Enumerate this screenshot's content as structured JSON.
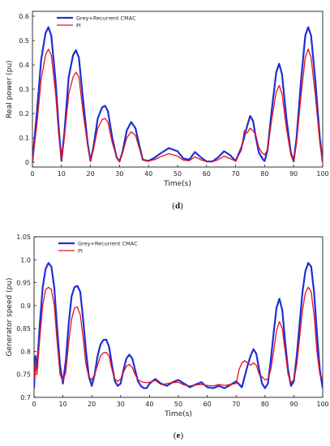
{
  "chart_data": [
    {
      "type": "line",
      "panel_label_open": "(",
      "panel_label_letter": "d",
      "panel_label_close": ")",
      "xlabel": "Time(s)",
      "ylabel": "Real power (pu)",
      "xlim": [
        0,
        100
      ],
      "ylim": [
        -0.02,
        0.62
      ],
      "xticks": [
        0,
        10,
        20,
        30,
        40,
        50,
        60,
        70,
        80,
        90,
        100
      ],
      "yticks": [
        0,
        0.1,
        0.2,
        0.3,
        0.4,
        0.5,
        0.6
      ],
      "ytick_labels": [
        "0",
        "0.1",
        "0.2",
        "0.3",
        "0.4",
        "0.5",
        "0.6"
      ],
      "legend_position": "top-left",
      "series": [
        {
          "name": "Grey+Recurrent CMAC",
          "color": "#1f2fd6",
          "x": [
            0,
            1.5,
            3,
            4.5,
            5.5,
            6.5,
            8,
            9,
            10,
            11,
            12.5,
            14,
            15,
            16,
            17.5,
            19,
            20,
            21,
            22.5,
            24,
            25,
            26,
            27.5,
            29,
            30,
            31,
            32.5,
            34,
            35.5,
            37,
            38,
            40,
            42,
            44,
            47,
            50,
            52,
            54,
            56,
            58,
            60,
            62,
            64,
            66,
            68,
            70,
            72,
            74,
            75,
            76,
            77,
            78,
            79.5,
            80,
            81,
            82.5,
            84,
            85,
            86,
            87.5,
            89,
            90,
            91,
            92.5,
            94,
            95,
            96,
            97.5,
            99,
            100
          ],
          "y": [
            0.0,
            0.2,
            0.42,
            0.53,
            0.555,
            0.52,
            0.33,
            0.15,
            0.005,
            0.12,
            0.35,
            0.44,
            0.46,
            0.43,
            0.25,
            0.08,
            0.005,
            0.06,
            0.18,
            0.225,
            0.232,
            0.21,
            0.1,
            0.02,
            0.003,
            0.04,
            0.13,
            0.165,
            0.14,
            0.06,
            0.01,
            0.005,
            0.018,
            0.035,
            0.058,
            0.045,
            0.015,
            0.01,
            0.042,
            0.02,
            0.003,
            0.003,
            0.02,
            0.045,
            0.03,
            0.005,
            0.06,
            0.15,
            0.19,
            0.17,
            0.1,
            0.04,
            0.01,
            0.005,
            0.05,
            0.22,
            0.37,
            0.405,
            0.36,
            0.18,
            0.04,
            0.003,
            0.1,
            0.33,
            0.52,
            0.555,
            0.52,
            0.33,
            0.1,
            0.0
          ]
        },
        {
          "name": "PI",
          "color": "#e8141b",
          "x": [
            0,
            1.5,
            3,
            4.5,
            5.5,
            6.5,
            8,
            9,
            10,
            11,
            12.5,
            14,
            15,
            16,
            17.5,
            19,
            20,
            21,
            22.5,
            24,
            25,
            26,
            27.5,
            29,
            30,
            31,
            32.5,
            34,
            35.5,
            37,
            38,
            40,
            42,
            44,
            47,
            50,
            52,
            54,
            56,
            58,
            60,
            62,
            64,
            66,
            68,
            70,
            72,
            73,
            74,
            75,
            76,
            77,
            78,
            79,
            80,
            81,
            82.5,
            84,
            85,
            86,
            87.5,
            89,
            90,
            91,
            92.5,
            94,
            95,
            96,
            97.5,
            99,
            100
          ],
          "y": [
            0.0,
            0.15,
            0.34,
            0.44,
            0.465,
            0.44,
            0.28,
            0.12,
            0.005,
            0.1,
            0.28,
            0.35,
            0.37,
            0.35,
            0.2,
            0.07,
            0.005,
            0.05,
            0.14,
            0.175,
            0.18,
            0.165,
            0.08,
            0.02,
            0.003,
            0.035,
            0.1,
            0.125,
            0.11,
            0.05,
            0.01,
            0.005,
            0.01,
            0.022,
            0.035,
            0.025,
            0.008,
            0.006,
            0.022,
            0.01,
            0.002,
            0.002,
            0.01,
            0.025,
            0.015,
            0.005,
            0.05,
            0.13,
            0.12,
            0.14,
            0.13,
            0.11,
            0.06,
            0.04,
            0.03,
            0.05,
            0.18,
            0.29,
            0.315,
            0.28,
            0.14,
            0.03,
            0.003,
            0.08,
            0.27,
            0.43,
            0.465,
            0.43,
            0.27,
            0.08,
            0.0
          ]
        }
      ]
    },
    {
      "type": "line",
      "panel_label_open": "(",
      "panel_label_letter": "e",
      "panel_label_close": ")",
      "xlabel": "Time(s)",
      "ylabel": "Generator speed (pu)",
      "xlim": [
        0,
        100
      ],
      "ylim": [
        0.7,
        1.05
      ],
      "xticks": [
        0,
        10,
        20,
        30,
        40,
        50,
        60,
        70,
        80,
        90,
        100
      ],
      "yticks": [
        0.7,
        0.75,
        0.8,
        0.85,
        0.9,
        0.95,
        1.0,
        1.05
      ],
      "ytick_labels": [
        "0.7",
        "0.75",
        "0.8",
        "0.85",
        "0.9",
        "0.95",
        "1.0",
        "1.05"
      ],
      "legend_position": "top-left",
      "series": [
        {
          "name": "Grey+Recurrent CMAC",
          "color": "#1f2fd6",
          "x": [
            0,
            0.5,
            1,
            2,
            3,
            4,
            5,
            6,
            7,
            8,
            9,
            10,
            11,
            12,
            13,
            14,
            15,
            16,
            17,
            18,
            19,
            20,
            21,
            22,
            23,
            24,
            25,
            26,
            27,
            28,
            29,
            30,
            31,
            32,
            33,
            34,
            35,
            36,
            37,
            38,
            39,
            40,
            42,
            44,
            46,
            48,
            50,
            52,
            54,
            56,
            58,
            60,
            62,
            64,
            66,
            68,
            70,
            72,
            74,
            75,
            76,
            77,
            78,
            79,
            80,
            81,
            82,
            83,
            84,
            85,
            86,
            87,
            88,
            89,
            90,
            91,
            92,
            93,
            94,
            95,
            96,
            97,
            98,
            99,
            100
          ],
          "y": [
            0.72,
            0.79,
            0.76,
            0.86,
            0.94,
            0.98,
            0.993,
            0.985,
            0.94,
            0.85,
            0.77,
            0.73,
            0.78,
            0.86,
            0.92,
            0.94,
            0.943,
            0.93,
            0.87,
            0.8,
            0.745,
            0.725,
            0.75,
            0.79,
            0.815,
            0.825,
            0.826,
            0.81,
            0.77,
            0.735,
            0.725,
            0.73,
            0.76,
            0.785,
            0.793,
            0.785,
            0.76,
            0.735,
            0.725,
            0.72,
            0.72,
            0.73,
            0.74,
            0.73,
            0.725,
            0.733,
            0.738,
            0.73,
            0.722,
            0.728,
            0.733,
            0.722,
            0.72,
            0.725,
            0.72,
            0.727,
            0.735,
            0.722,
            0.77,
            0.79,
            0.805,
            0.795,
            0.76,
            0.73,
            0.72,
            0.73,
            0.78,
            0.84,
            0.895,
            0.915,
            0.89,
            0.82,
            0.76,
            0.725,
            0.735,
            0.79,
            0.86,
            0.93,
            0.975,
            0.993,
            0.985,
            0.93,
            0.84,
            0.76,
            0.72
          ]
        },
        {
          "name": "PI",
          "color": "#e8141b",
          "x": [
            0,
            0.5,
            1,
            2,
            3,
            4,
            5,
            6,
            7,
            8,
            9,
            10,
            11,
            12,
            13,
            14,
            15,
            16,
            17,
            18,
            19,
            20,
            21,
            22,
            23,
            24,
            25,
            26,
            27,
            28,
            29,
            30,
            31,
            32,
            33,
            34,
            35,
            36,
            37,
            38,
            39,
            40,
            42,
            44,
            46,
            48,
            50,
            52,
            54,
            56,
            58,
            60,
            62,
            64,
            66,
            68,
            70,
            71,
            72,
            73,
            74,
            75,
            76,
            77,
            78,
            79,
            80,
            81,
            82,
            83,
            84,
            85,
            86,
            87,
            88,
            89,
            90,
            91,
            92,
            93,
            94,
            95,
            96,
            97,
            98,
            99,
            100
          ],
          "y": [
            0.74,
            0.78,
            0.75,
            0.83,
            0.9,
            0.935,
            0.94,
            0.935,
            0.9,
            0.82,
            0.75,
            0.735,
            0.755,
            0.82,
            0.87,
            0.895,
            0.897,
            0.88,
            0.83,
            0.77,
            0.745,
            0.738,
            0.75,
            0.77,
            0.79,
            0.797,
            0.798,
            0.79,
            0.76,
            0.74,
            0.735,
            0.74,
            0.755,
            0.768,
            0.772,
            0.765,
            0.75,
            0.738,
            0.735,
            0.733,
            0.732,
            0.733,
            0.737,
            0.728,
            0.73,
            0.732,
            0.733,
            0.727,
            0.725,
            0.727,
            0.728,
            0.726,
            0.725,
            0.728,
            0.726,
            0.728,
            0.73,
            0.76,
            0.775,
            0.78,
            0.775,
            0.77,
            0.775,
            0.77,
            0.75,
            0.745,
            0.738,
            0.74,
            0.76,
            0.8,
            0.845,
            0.865,
            0.85,
            0.8,
            0.75,
            0.732,
            0.738,
            0.77,
            0.83,
            0.89,
            0.928,
            0.94,
            0.93,
            0.88,
            0.8,
            0.75,
            0.74
          ]
        }
      ]
    }
  ]
}
